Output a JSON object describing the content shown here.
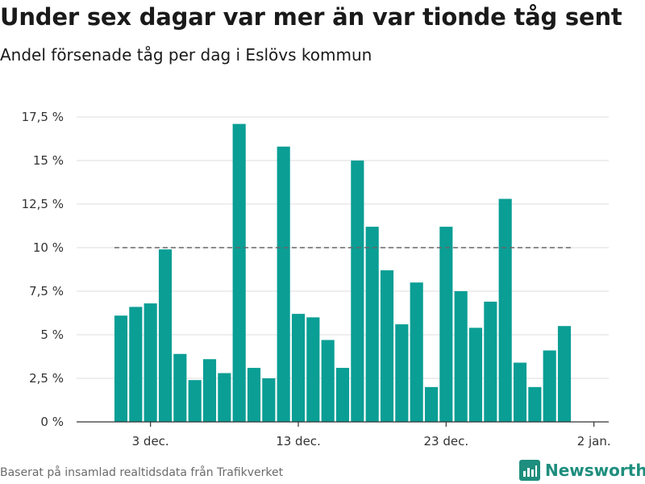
{
  "header": {
    "title": "Under sex dagar var mer än var tionde tåg sent",
    "subtitle": "Andel försenade tåg per dag i Eslövs kommun"
  },
  "footer": {
    "source": "Baserat på insamlad realtidsdata från Trafikverket",
    "brand": "Newsworthy"
  },
  "colors": {
    "bar": "#0a9e95",
    "reference_line": "#666666",
    "grid": "#dddddd",
    "brand": "#1e8e7e"
  },
  "chart_data": {
    "type": "bar",
    "title": "Under sex dagar var mer än var tionde tåg sent",
    "subtitle": "Andel försenade tåg per dag i Eslövs kommun",
    "xlabel": "",
    "ylabel": "",
    "ylim": [
      0,
      17.5
    ],
    "yticks": [
      0,
      2.5,
      5,
      7.5,
      10,
      12.5,
      15,
      17.5
    ],
    "ytick_labels": [
      "0 %",
      "2,5 %",
      "5 %",
      "7,5 %",
      "10 %",
      "12,5 %",
      "15 %",
      "17,5 %"
    ],
    "x_start": "2023-11-28",
    "x_end": "2024-01-03",
    "xticks": [
      "2023-12-03",
      "2023-12-13",
      "2023-12-23",
      "2024-01-02"
    ],
    "xtick_labels": [
      "3 dec.",
      "13 dec.",
      "23 dec.",
      "2 jan."
    ],
    "grid": true,
    "x": [
      "2023-12-01",
      "2023-12-02",
      "2023-12-03",
      "2023-12-04",
      "2023-12-05",
      "2023-12-06",
      "2023-12-07",
      "2023-12-08",
      "2023-12-09",
      "2023-12-10",
      "2023-12-11",
      "2023-12-12",
      "2023-12-13",
      "2023-12-14",
      "2023-12-15",
      "2023-12-16",
      "2023-12-17",
      "2023-12-18",
      "2023-12-19",
      "2023-12-20",
      "2023-12-21",
      "2023-12-22",
      "2023-12-23",
      "2023-12-24",
      "2023-12-25",
      "2023-12-26",
      "2023-12-27",
      "2023-12-28",
      "2023-12-29",
      "2023-12-30",
      "2023-12-31"
    ],
    "values": [
      6.1,
      6.6,
      6.8,
      9.9,
      3.9,
      2.4,
      3.6,
      2.8,
      17.1,
      3.1,
      2.5,
      15.8,
      6.2,
      6.0,
      4.7,
      3.1,
      15.0,
      11.2,
      8.7,
      5.6,
      8.0,
      2.0,
      11.2,
      7.5,
      5.4,
      6.9,
      12.8,
      3.4,
      2.0,
      4.1,
      5.5
    ],
    "reference_line": {
      "y": 10,
      "from": "2023-12-01",
      "to": "2023-12-31",
      "style": "dashed"
    }
  }
}
